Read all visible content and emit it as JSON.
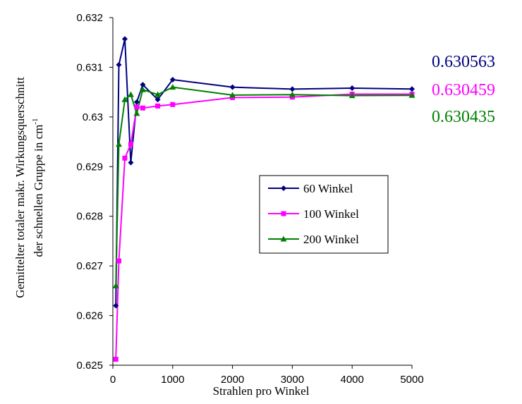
{
  "chart_data": {
    "type": "line",
    "xlabel": "Strahlen pro Winkel",
    "ylabel_line1": "Gemittelter totaler makr. Wirkungsquerschnitt",
    "ylabel_line2": "der schnellen Gruppe in cm",
    "ylabel_sup": "-1",
    "xlim": [
      0,
      5000
    ],
    "ylim": [
      0.625,
      0.632
    ],
    "x_ticks": [
      0,
      1000,
      2000,
      3000,
      4000,
      5000
    ],
    "y_ticks": [
      0.625,
      0.626,
      0.627,
      0.628,
      0.629,
      0.63,
      0.631,
      0.632
    ],
    "x_tick_labels": [
      "0",
      "1000",
      "2000",
      "3000",
      "4000",
      "5000"
    ],
    "y_tick_labels": [
      "0.625",
      "0.626",
      "0.627",
      "0.628",
      "0.629",
      "0.63",
      "0.631",
      "0.632"
    ],
    "grid": false,
    "legend_position": "center-right",
    "series": [
      {
        "name": "60 Winkel",
        "color": "#000080",
        "marker": "diamond",
        "x": [
          50,
          100,
          200,
          300,
          400,
          500,
          750,
          1000,
          2000,
          3000,
          4000,
          5000
        ],
        "y": [
          0.6262,
          0.63105,
          0.63157,
          0.62908,
          0.6303,
          0.63065,
          0.63035,
          0.63075,
          0.6306,
          0.63056,
          0.63058,
          0.630563
        ]
      },
      {
        "name": "100 Winkel",
        "color": "#ff00ff",
        "marker": "square",
        "x": [
          50,
          100,
          200,
          300,
          400,
          500,
          750,
          1000,
          2000,
          3000,
          4000,
          5000
        ],
        "y": [
          0.62512,
          0.6271,
          0.62917,
          0.62945,
          0.6302,
          0.63018,
          0.63022,
          0.63025,
          0.63039,
          0.6304,
          0.63046,
          0.630459
        ]
      },
      {
        "name": "200 Winkel",
        "color": "#008000",
        "marker": "triangle",
        "x": [
          50,
          100,
          200,
          300,
          400,
          500,
          750,
          1000,
          2000,
          3000,
          4000,
          5000
        ],
        "y": [
          0.6266,
          0.62945,
          0.63035,
          0.63045,
          0.63007,
          0.63055,
          0.63045,
          0.6306,
          0.63044,
          0.63045,
          0.63043,
          0.630435
        ]
      }
    ],
    "annotations": [
      {
        "text": "0.630563",
        "color": "#000080"
      },
      {
        "text": "0.630459",
        "color": "#ff00ff"
      },
      {
        "text": "0.630435",
        "color": "#008000"
      }
    ]
  }
}
